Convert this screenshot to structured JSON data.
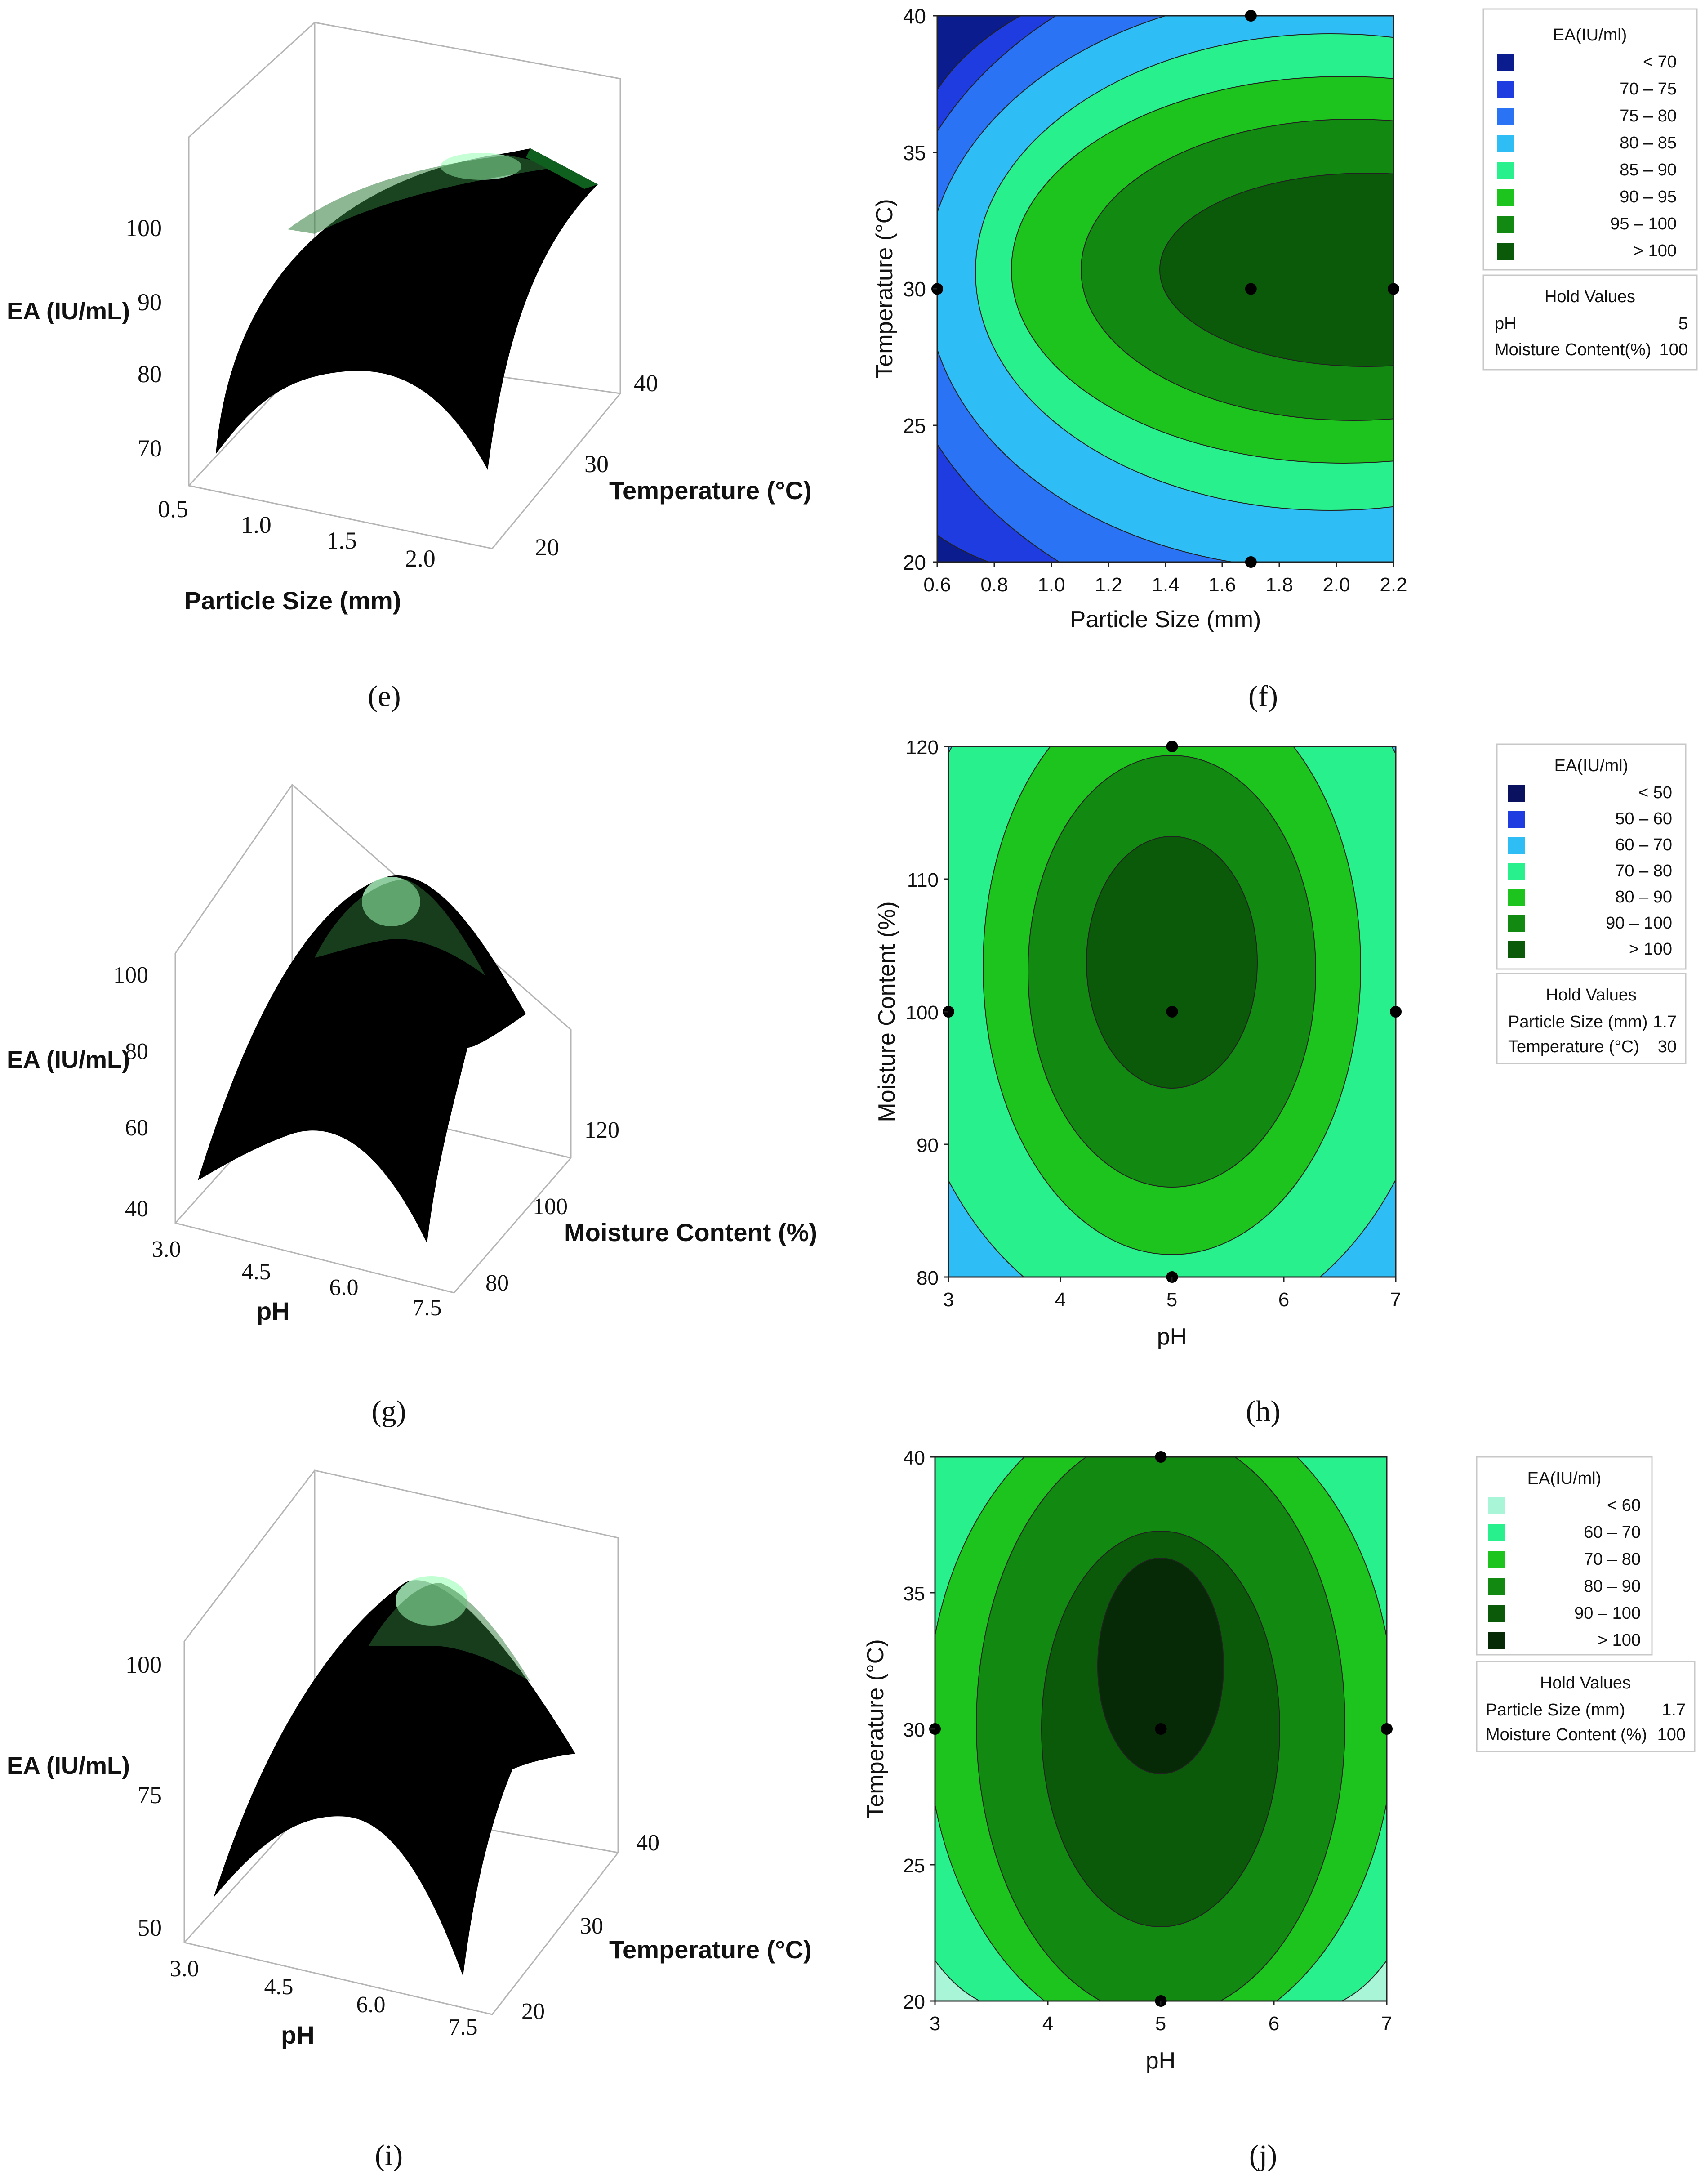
{
  "chart_data": [
    {
      "panel": "e",
      "type": "surface3d",
      "zlabel": "EA (IU/mL)",
      "xlabel": "Particle Size (mm)",
      "ylabel": "Temperature (°C)",
      "zticks": [
        "70",
        "80",
        "90",
        "100"
      ],
      "xticks": [
        "0.5",
        "1.0",
        "1.5",
        "2.0"
      ],
      "yticks": [
        "20",
        "30",
        "40"
      ],
      "zlim": [
        67,
        110
      ],
      "xlim": [
        0.5,
        2.2
      ],
      "ylim": [
        20,
        40
      ]
    },
    {
      "panel": "f",
      "type": "contour",
      "xlabel": "Particle Size (mm)",
      "ylabel": "Temperature (°C)",
      "xticks": [
        "0.6",
        "0.8",
        "1.0",
        "1.2",
        "1.4",
        "1.6",
        "1.8",
        "2.0",
        "2.2"
      ],
      "yticks": [
        "20",
        "25",
        "30",
        "35",
        "40"
      ],
      "xlim": [
        0.6,
        2.2
      ],
      "ylim": [
        20,
        40
      ],
      "legend_title": "EA(IU/ml)",
      "legend": [
        {
          "label": "<   70",
          "color": "#0a1c8e"
        },
        {
          "label": "70  –   75",
          "color": "#1f3ce0"
        },
        {
          "label": "75  –   80",
          "color": "#2a73f5"
        },
        {
          "label": "80  –   85",
          "color": "#2fbdf5"
        },
        {
          "label": "85  –   90",
          "color": "#27f08d"
        },
        {
          "label": "90  –   95",
          "color": "#1dc41d"
        },
        {
          "label": "95  –  100",
          "color": "#128a12"
        },
        {
          "label": ">  100",
          "color": "#0a5a0a"
        }
      ],
      "hold_title": "Hold Values",
      "hold_values": [
        {
          "name": "pH",
          "value": "5"
        },
        {
          "name": "Moisture Content(%)",
          "value": "100"
        }
      ],
      "design_points": [
        [
          1.7,
          40
        ],
        [
          0.6,
          30
        ],
        [
          1.7,
          30
        ],
        [
          2.2,
          30
        ],
        [
          1.7,
          20
        ]
      ]
    },
    {
      "panel": "g",
      "type": "surface3d",
      "zlabel": "EA (IU/mL)",
      "xlabel": "pH",
      "ylabel": "Moisture Content (%)",
      "zticks": [
        "40",
        "60",
        "80",
        "100"
      ],
      "xticks": [
        "3.0",
        "4.5",
        "6.0",
        "7.5"
      ],
      "yticks": [
        "80",
        "100",
        "120"
      ],
      "zlim": [
        35,
        115
      ],
      "xlim": [
        3,
        7.5
      ],
      "ylim": [
        80,
        120
      ]
    },
    {
      "panel": "h",
      "type": "contour",
      "xlabel": "pH",
      "ylabel": "Moisture Content (%)",
      "xticks": [
        "3",
        "4",
        "5",
        "6",
        "7"
      ],
      "yticks": [
        "80",
        "90",
        "100",
        "110",
        "120"
      ],
      "xlim": [
        3,
        7
      ],
      "ylim": [
        80,
        120
      ],
      "legend_title": "EA(IU/ml)",
      "legend": [
        {
          "label": "<   50",
          "color": "#0a1260"
        },
        {
          "label": "50  –   60",
          "color": "#1f3ce0"
        },
        {
          "label": "60  –   70",
          "color": "#2fbdf5"
        },
        {
          "label": "70  –   80",
          "color": "#27f08d"
        },
        {
          "label": "80  –   90",
          "color": "#1dc41d"
        },
        {
          "label": "90  –  100",
          "color": "#128a12"
        },
        {
          "label": ">  100",
          "color": "#0a5a0a"
        }
      ],
      "hold_title": "Hold Values",
      "hold_values": [
        {
          "name": "Particle Size (mm)",
          "value": "1.7"
        },
        {
          "name": "Temperature (°C)",
          "value": "30"
        }
      ],
      "design_points": [
        [
          5,
          120
        ],
        [
          3,
          100
        ],
        [
          5,
          100
        ],
        [
          7,
          100
        ],
        [
          5,
          80
        ]
      ]
    },
    {
      "panel": "i",
      "type": "surface3d",
      "zlabel": "EA (IU/mL)",
      "xlabel": "pH",
      "ylabel": "Temperature (°C)",
      "zticks": [
        "50",
        "75",
        "100"
      ],
      "xticks": [
        "3.0",
        "4.5",
        "6.0",
        "7.5"
      ],
      "yticks": [
        "20",
        "30",
        "40"
      ],
      "zlim": [
        45,
        115
      ],
      "xlim": [
        3,
        7.5
      ],
      "ylim": [
        20,
        40
      ]
    },
    {
      "panel": "j",
      "type": "contour",
      "xlabel": "pH",
      "ylabel": "Temperature (°C)",
      "xticks": [
        "3",
        "4",
        "5",
        "6",
        "7"
      ],
      "yticks": [
        "20",
        "25",
        "30",
        "35",
        "40"
      ],
      "xlim": [
        3,
        7
      ],
      "ylim": [
        20,
        40
      ],
      "legend_title": "EA(IU/ml)",
      "legend": [
        {
          "label": "<   60",
          "color": "#a8f5d8"
        },
        {
          "label": "60  –   70",
          "color": "#27f08d"
        },
        {
          "label": "70  –   80",
          "color": "#1dc41d"
        },
        {
          "label": "80  –   90",
          "color": "#128a12"
        },
        {
          "label": "90  –  100",
          "color": "#0a5a0a"
        },
        {
          "label": ">  100",
          "color": "#062a06"
        }
      ],
      "hold_title": "Hold Values",
      "hold_values": [
        {
          "name": "Particle Size (mm)",
          "value": "1.7"
        },
        {
          "name": "Moisture Content (%)",
          "value": "100"
        }
      ],
      "design_points": [
        [
          5,
          40
        ],
        [
          3,
          30
        ],
        [
          5,
          30
        ],
        [
          7,
          30
        ],
        [
          5,
          20
        ]
      ]
    }
  ],
  "captions": [
    "(e)",
    "(f)",
    "(g)",
    "(h)",
    "(i)",
    "(j)"
  ]
}
